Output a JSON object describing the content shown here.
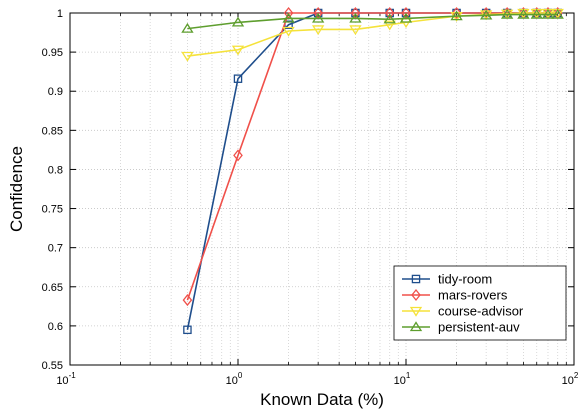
{
  "chart_data": {
    "type": "line",
    "xlabel": "Known Data (%)",
    "ylabel": "Confidence",
    "xscale": "log",
    "xlim": [
      0.1,
      100
    ],
    "ylim": [
      0.55,
      1
    ],
    "grid": true,
    "legend_position": "bottom-right",
    "x_tick_labels": [
      {
        "value": 0.1,
        "base": "10",
        "exp": "-1"
      },
      {
        "value": 1,
        "base": "10",
        "exp": "0"
      },
      {
        "value": 10,
        "base": "10",
        "exp": "1"
      },
      {
        "value": 100,
        "base": "10",
        "exp": "2"
      }
    ],
    "y_ticks": [
      0.55,
      0.6,
      0.65,
      0.7,
      0.75,
      0.8,
      0.85,
      0.9,
      0.95,
      1
    ],
    "y_tick_labels": [
      "0.55",
      "0.6",
      "0.65",
      "0.7",
      "0.75",
      "0.8",
      "0.85",
      "0.9",
      "0.95",
      "1"
    ],
    "series": [
      {
        "name": "tidy-room",
        "color": "#1f4e8c",
        "marker": "square",
        "x": [
          0.5,
          1,
          2,
          3,
          5,
          8,
          10,
          20,
          30,
          40,
          50,
          60,
          70,
          80
        ],
        "y": [
          0.595,
          0.916,
          0.985,
          1.0,
          1.0,
          1.0,
          1.0,
          1.0,
          1.0,
          1.0,
          1.0,
          1.0,
          1.0,
          1.0
        ]
      },
      {
        "name": "mars-rovers",
        "color": "#f0504a",
        "marker": "diamond",
        "x": [
          0.5,
          1,
          2,
          3,
          5,
          8,
          10,
          20,
          30,
          40,
          50,
          60,
          70,
          80
        ],
        "y": [
          0.633,
          0.818,
          1.0,
          1.0,
          1.0,
          1.0,
          1.0,
          1.0,
          1.0,
          1.0,
          1.0,
          1.0,
          1.0,
          1.0
        ]
      },
      {
        "name": "course-advisor",
        "color": "#f5e23a",
        "marker": "triangle-down",
        "x": [
          0.5,
          1,
          2,
          3,
          5,
          8,
          10,
          20,
          30,
          40,
          50,
          60,
          70,
          80
        ],
        "y": [
          0.945,
          0.953,
          0.977,
          0.979,
          0.979,
          0.985,
          0.988,
          0.996,
          0.998,
          0.999,
          1.0,
          1.0,
          1.0,
          1.0
        ]
      },
      {
        "name": "persistent-auv",
        "color": "#5e9e2e",
        "marker": "triangle-up",
        "x": [
          0.5,
          1,
          2,
          3,
          5,
          8,
          10,
          20,
          30,
          40,
          50,
          60,
          70,
          80
        ],
        "y": [
          0.98,
          0.988,
          0.993,
          0.993,
          0.993,
          0.992,
          0.993,
          0.996,
          0.997,
          0.998,
          0.998,
          0.998,
          0.998,
          0.998
        ]
      }
    ]
  }
}
